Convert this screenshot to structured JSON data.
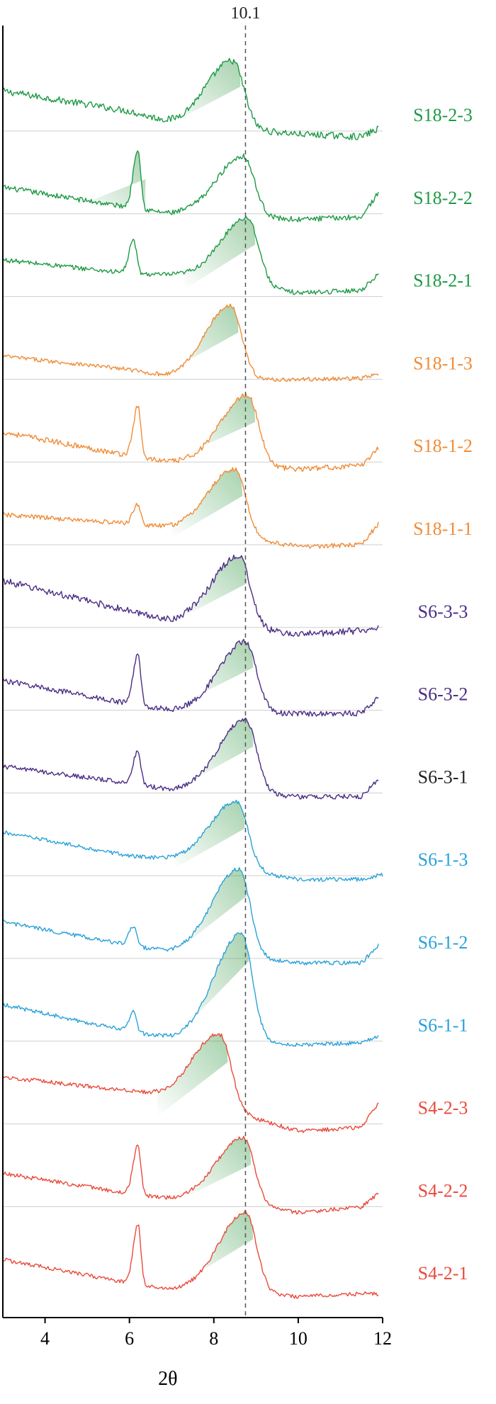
{
  "chart_data": {
    "type": "line",
    "xlabel": "2θ",
    "ylabel": "",
    "xlim": [
      3.0,
      12.0
    ],
    "xticks": [
      "4",
      "6",
      "8",
      "10",
      "12"
    ],
    "grid": "horizontal separators between traces",
    "reference_line": {
      "x": 8.75,
      "label": "10.1",
      "style": "dashed"
    },
    "shading": "green gradient under main peak of each trace",
    "series": [
      {
        "name": "S18-2-3",
        "color": "#1e9a46",
        "peaks": [
          [
            8.45,
            1.0
          ]
        ],
        "bg": [
          [
            3,
            0.7
          ],
          [
            6,
            0.4
          ],
          [
            7,
            0.22
          ],
          [
            7.5,
            0.2
          ],
          [
            10,
            0.06
          ],
          [
            11.5,
            0.02
          ],
          [
            11.9,
            0.14
          ]
        ],
        "noise": 0.1,
        "x_end": 11.9
      },
      {
        "name": "S18-2-2",
        "color": "#1e9a46",
        "peaks": [
          [
            6.2,
            0.9
          ],
          [
            8.7,
            0.9
          ]
        ],
        "bg": [
          [
            3,
            0.5
          ],
          [
            6,
            0.2
          ],
          [
            7,
            0.1
          ],
          [
            7.5,
            0.1
          ],
          [
            10,
            0.02
          ],
          [
            11.5,
            0.06
          ],
          [
            11.9,
            0.42
          ]
        ],
        "noise": 0.08,
        "x_end": 11.9
      },
      {
        "name": "S18-2-1",
        "color": "#1e9a46",
        "peaks": [
          [
            6.1,
            0.5
          ],
          [
            8.8,
            1.0
          ]
        ],
        "bg": [
          [
            3,
            0.65
          ],
          [
            6,
            0.45
          ],
          [
            7,
            0.42
          ],
          [
            7.5,
            0.4
          ],
          [
            10,
            0.16
          ],
          [
            11.5,
            0.2
          ],
          [
            11.9,
            0.45
          ]
        ],
        "noise": 0.07,
        "x_end": 11.9
      },
      {
        "name": "S18-1-3",
        "color": "#f08c38",
        "peaks": [
          [
            8.4,
            1.1
          ]
        ],
        "bg": [
          [
            3,
            0.45
          ],
          [
            6,
            0.25
          ],
          [
            7,
            0.12
          ],
          [
            7.5,
            0.1
          ],
          [
            10,
            0.1
          ],
          [
            11.5,
            0.12
          ],
          [
            11.9,
            0.18
          ]
        ],
        "noise": 0.06,
        "x_end": 11.9
      },
      {
        "name": "S18-1-2",
        "color": "#f08c38",
        "peaks": [
          [
            6.2,
            0.75
          ],
          [
            8.8,
            1.05
          ]
        ],
        "bg": [
          [
            3,
            0.55
          ],
          [
            6,
            0.2
          ],
          [
            7,
            0.1
          ],
          [
            7.5,
            0.1
          ],
          [
            10,
            0.0
          ],
          [
            11.5,
            0.05
          ],
          [
            11.9,
            0.32
          ]
        ],
        "noise": 0.08,
        "x_end": 11.9
      },
      {
        "name": "S18-1-1",
        "color": "#f08c38",
        "peaks": [
          [
            6.2,
            0.3
          ],
          [
            8.5,
            1.0
          ]
        ],
        "bg": [
          [
            3,
            0.55
          ],
          [
            6,
            0.42
          ],
          [
            7,
            0.35
          ],
          [
            7.5,
            0.32
          ],
          [
            10,
            0.08
          ],
          [
            11.5,
            0.1
          ],
          [
            11.9,
            0.42
          ]
        ],
        "noise": 0.07,
        "x_end": 11.9
      },
      {
        "name": "S6-3-3",
        "color": "#4b2d84",
        "peaks": [
          [
            8.6,
            1.05
          ]
        ],
        "bg": [
          [
            3,
            0.8
          ],
          [
            6,
            0.35
          ],
          [
            7,
            0.2
          ],
          [
            7.5,
            0.2
          ],
          [
            10,
            0.0
          ],
          [
            11.5,
            0.06
          ],
          [
            11.9,
            0.12
          ]
        ],
        "noise": 0.1,
        "x_end": 11.9
      },
      {
        "name": "S6-3-2",
        "color": "#4b2d84",
        "peaks": [
          [
            6.2,
            0.75
          ],
          [
            8.75,
            1.05
          ]
        ],
        "bg": [
          [
            3,
            0.55
          ],
          [
            6,
            0.2
          ],
          [
            7,
            0.1
          ],
          [
            7.5,
            0.1
          ],
          [
            10,
            0.05
          ],
          [
            11.5,
            0.06
          ],
          [
            11.9,
            0.3
          ]
        ],
        "noise": 0.08,
        "x_end": 11.9
      },
      {
        "name": "S6-3-1",
        "color": "#4b2d84",
        "label_color": "#222222",
        "peaks": [
          [
            6.2,
            0.5
          ],
          [
            8.75,
            1.1
          ]
        ],
        "bg": [
          [
            3,
            0.5
          ],
          [
            6,
            0.25
          ],
          [
            7,
            0.15
          ],
          [
            7.5,
            0.15
          ],
          [
            10,
            0.05
          ],
          [
            11.5,
            0.05
          ],
          [
            11.9,
            0.3
          ]
        ],
        "noise": 0.07,
        "x_end": 11.9
      },
      {
        "name": "S6-1-3",
        "color": "#2aa2d8",
        "peaks": [
          [
            8.55,
            1.0
          ]
        ],
        "bg": [
          [
            3,
            0.75
          ],
          [
            6,
            0.4
          ],
          [
            7,
            0.35
          ],
          [
            7.5,
            0.32
          ],
          [
            10,
            0.05
          ],
          [
            11.5,
            0.05
          ],
          [
            12.0,
            0.12
          ]
        ],
        "noise": 0.06,
        "x_end": 12.0
      },
      {
        "name": "S6-1-2",
        "color": "#2aa2d8",
        "peaks": [
          [
            6.1,
            0.3
          ],
          [
            8.6,
            1.3
          ]
        ],
        "bg": [
          [
            3,
            0.65
          ],
          [
            6,
            0.3
          ],
          [
            7,
            0.2
          ],
          [
            7.5,
            0.2
          ],
          [
            10,
            0.04
          ],
          [
            11.5,
            0.04
          ],
          [
            11.9,
            0.3
          ]
        ],
        "noise": 0.06,
        "x_end": 11.9
      },
      {
        "name": "S6-1-1",
        "color": "#2aa2d8",
        "peaks": [
          [
            6.1,
            0.3
          ],
          [
            8.65,
            1.6
          ]
        ],
        "bg": [
          [
            3,
            0.65
          ],
          [
            6,
            0.25
          ],
          [
            7,
            0.15
          ],
          [
            7.5,
            0.15
          ],
          [
            10,
            0.05
          ],
          [
            11.5,
            0.08
          ],
          [
            11.9,
            0.18
          ]
        ],
        "noise": 0.06,
        "x_end": 11.9
      },
      {
        "name": "S4-2-3",
        "color": "#e84b3c",
        "peaks": [
          [
            8.15,
            1.1
          ]
        ],
        "bg": [
          [
            3,
            0.8
          ],
          [
            6,
            0.6
          ],
          [
            7,
            0.5
          ],
          [
            7.5,
            0.45
          ],
          [
            10,
            0.0
          ],
          [
            11.5,
            0.05
          ],
          [
            11.9,
            0.42
          ]
        ],
        "noise": 0.06,
        "x_end": 11.9
      },
      {
        "name": "S4-2-2",
        "color": "#e84b3c",
        "peaks": [
          [
            6.2,
            0.75
          ],
          [
            8.7,
            1.0
          ]
        ],
        "bg": [
          [
            3,
            0.6
          ],
          [
            6,
            0.3
          ],
          [
            7,
            0.22
          ],
          [
            7.5,
            0.22
          ],
          [
            10,
            0.02
          ],
          [
            11.5,
            0.1
          ],
          [
            11.9,
            0.3
          ]
        ],
        "noise": 0.06,
        "x_end": 11.9
      },
      {
        "name": "S4-2-1",
        "color": "#e84b3c",
        "peaks": [
          [
            6.2,
            0.9
          ],
          [
            8.75,
            1.2
          ]
        ],
        "bg": [
          [
            3,
            0.55
          ],
          [
            6,
            0.2
          ],
          [
            7,
            0.1
          ],
          [
            7.5,
            0.1
          ],
          [
            10,
            0.0
          ],
          [
            11.5,
            0.04
          ],
          [
            11.9,
            0.04
          ]
        ],
        "noise": 0.06,
        "x_end": 11.9
      }
    ]
  }
}
